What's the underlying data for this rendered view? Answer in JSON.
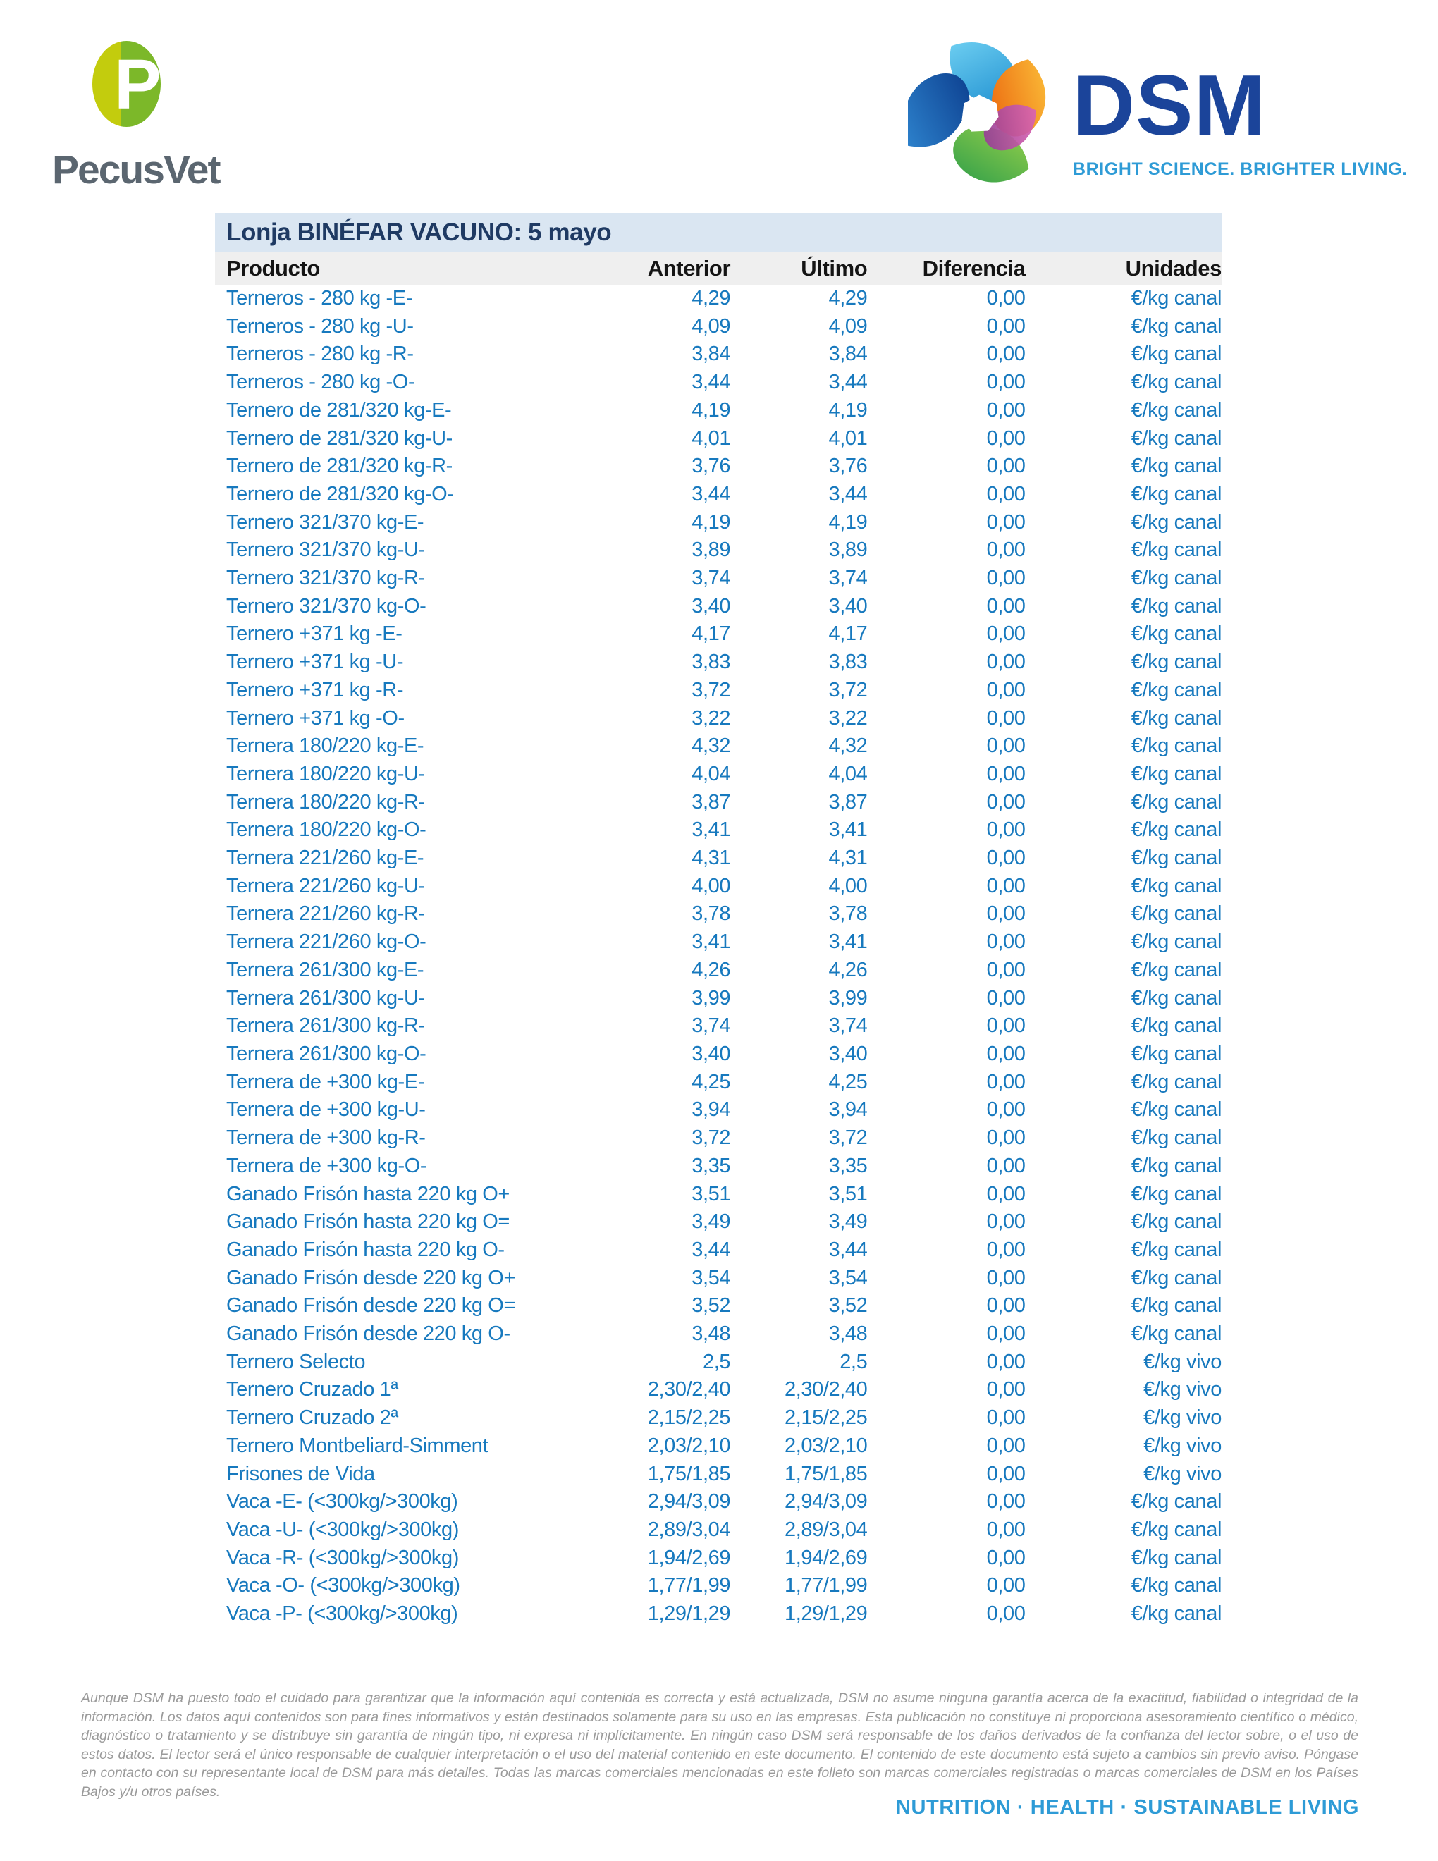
{
  "logos": {
    "pecusvet_text": "PecusVet",
    "dsm_text": "DSM",
    "dsm_tagline": "BRIGHT SCIENCE. BRIGHTER LIVING."
  },
  "icons": {
    "pecusvet_mark": "split-green-ellipse-with-white-P",
    "dsm_mark": "multicolor-swirl-pinwheel"
  },
  "colors": {
    "title_navy": "#1f3a63",
    "title_bar_bg": "#dae6f2",
    "header_row_bg": "#efefef",
    "row_text_blue": "#1779be",
    "dsm_blue": "#1b449a",
    "dsm_light_blue": "#2e9bd6",
    "pecusvet_gray": "#5b6670",
    "pecusvet_yellow_green": "#c3cc0d",
    "pecusvet_green": "#7cb829",
    "disclaimer_gray": "#9a9a9a"
  },
  "table": {
    "title": "Lonja BINÉFAR VACUNO: 5 mayo",
    "columns": [
      "Producto",
      "Anterior",
      "Último",
      "Diferencia",
      "Unidades"
    ],
    "rows": [
      [
        "Terneros - 280 kg -E-",
        "4,29",
        "4,29",
        "0,00",
        "€/kg canal"
      ],
      [
        "Terneros - 280 kg -U-",
        "4,09",
        "4,09",
        "0,00",
        "€/kg canal"
      ],
      [
        "Terneros - 280 kg -R-",
        "3,84",
        "3,84",
        "0,00",
        "€/kg canal"
      ],
      [
        "Terneros - 280 kg -O-",
        "3,44",
        "3,44",
        "0,00",
        "€/kg canal"
      ],
      [
        "Ternero de 281/320 kg-E-",
        "4,19",
        "4,19",
        "0,00",
        "€/kg canal"
      ],
      [
        "Ternero de 281/320 kg-U-",
        "4,01",
        "4,01",
        "0,00",
        "€/kg canal"
      ],
      [
        "Ternero de 281/320 kg-R-",
        "3,76",
        "3,76",
        "0,00",
        "€/kg canal"
      ],
      [
        "Ternero de 281/320 kg-O-",
        "3,44",
        "3,44",
        "0,00",
        "€/kg canal"
      ],
      [
        "Ternero 321/370 kg-E-",
        "4,19",
        "4,19",
        "0,00",
        "€/kg canal"
      ],
      [
        "Ternero 321/370 kg-U-",
        "3,89",
        "3,89",
        "0,00",
        "€/kg canal"
      ],
      [
        "Ternero 321/370 kg-R-",
        "3,74",
        "3,74",
        "0,00",
        "€/kg canal"
      ],
      [
        "Ternero 321/370 kg-O-",
        "3,40",
        "3,40",
        "0,00",
        "€/kg canal"
      ],
      [
        "Ternero +371 kg -E-",
        "4,17",
        "4,17",
        "0,00",
        "€/kg canal"
      ],
      [
        "Ternero +371 kg -U-",
        "3,83",
        "3,83",
        "0,00",
        "€/kg canal"
      ],
      [
        "Ternero +371 kg -R-",
        "3,72",
        "3,72",
        "0,00",
        "€/kg canal"
      ],
      [
        "Ternero +371 kg -O-",
        "3,22",
        "3,22",
        "0,00",
        "€/kg canal"
      ],
      [
        "Ternera 180/220 kg-E-",
        "4,32",
        "4,32",
        "0,00",
        "€/kg canal"
      ],
      [
        "Ternera 180/220 kg-U-",
        "4,04",
        "4,04",
        "0,00",
        "€/kg canal"
      ],
      [
        "Ternera 180/220 kg-R-",
        "3,87",
        "3,87",
        "0,00",
        "€/kg canal"
      ],
      [
        "Ternera 180/220 kg-O-",
        "3,41",
        "3,41",
        "0,00",
        "€/kg canal"
      ],
      [
        "Ternera 221/260 kg-E-",
        "4,31",
        "4,31",
        "0,00",
        "€/kg canal"
      ],
      [
        "Ternera 221/260 kg-U-",
        "4,00",
        "4,00",
        "0,00",
        "€/kg canal"
      ],
      [
        "Ternera 221/260 kg-R-",
        "3,78",
        "3,78",
        "0,00",
        "€/kg canal"
      ],
      [
        "Ternera 221/260 kg-O-",
        "3,41",
        "3,41",
        "0,00",
        "€/kg canal"
      ],
      [
        "Ternera 261/300 kg-E-",
        "4,26",
        "4,26",
        "0,00",
        "€/kg canal"
      ],
      [
        "Ternera 261/300 kg-U-",
        "3,99",
        "3,99",
        "0,00",
        "€/kg canal"
      ],
      [
        "Ternera 261/300 kg-R-",
        "3,74",
        "3,74",
        "0,00",
        "€/kg canal"
      ],
      [
        "Ternera 261/300 kg-O-",
        "3,40",
        "3,40",
        "0,00",
        "€/kg canal"
      ],
      [
        "Ternera de +300 kg-E-",
        "4,25",
        "4,25",
        "0,00",
        "€/kg canal"
      ],
      [
        "Ternera de +300 kg-U-",
        "3,94",
        "3,94",
        "0,00",
        "€/kg canal"
      ],
      [
        "Ternera de +300 kg-R-",
        "3,72",
        "3,72",
        "0,00",
        "€/kg canal"
      ],
      [
        "Ternera de +300 kg-O-",
        "3,35",
        "3,35",
        "0,00",
        "€/kg canal"
      ],
      [
        "Ganado Frisón hasta 220 kg O+",
        "3,51",
        "3,51",
        "0,00",
        "€/kg canal"
      ],
      [
        "Ganado Frisón hasta 220 kg O=",
        "3,49",
        "3,49",
        "0,00",
        "€/kg canal"
      ],
      [
        "Ganado Frisón hasta 220 kg O-",
        "3,44",
        "3,44",
        "0,00",
        "€/kg canal"
      ],
      [
        "Ganado Frisón desde 220 kg O+",
        "3,54",
        "3,54",
        "0,00",
        "€/kg canal"
      ],
      [
        "Ganado Frisón desde 220 kg O=",
        "3,52",
        "3,52",
        "0,00",
        "€/kg canal"
      ],
      [
        "Ganado Frisón desde 220 kg O-",
        "3,48",
        "3,48",
        "0,00",
        "€/kg canal"
      ],
      [
        "Ternero Selecto",
        "2,5",
        "2,5",
        "0,00",
        "€/kg vivo"
      ],
      [
        "Ternero Cruzado 1ª",
        "2,30/2,40",
        "2,30/2,40",
        "0,00",
        "€/kg vivo"
      ],
      [
        "Ternero Cruzado 2ª",
        "2,15/2,25",
        "2,15/2,25",
        "0,00",
        "€/kg vivo"
      ],
      [
        "Ternero Montbeliard-Simment",
        "2,03/2,10",
        "2,03/2,10",
        "0,00",
        "€/kg vivo"
      ],
      [
        "Frisones de Vida",
        "1,75/1,85",
        "1,75/1,85",
        "0,00",
        "€/kg vivo"
      ],
      [
        "Vaca -E- (<300kg/>300kg)",
        "2,94/3,09",
        "2,94/3,09",
        "0,00",
        "€/kg canal"
      ],
      [
        "Vaca -U- (<300kg/>300kg)",
        "2,89/3,04",
        "2,89/3,04",
        "0,00",
        "€/kg canal"
      ],
      [
        "Vaca -R- (<300kg/>300kg)",
        "1,94/2,69",
        "1,94/2,69",
        "0,00",
        "€/kg canal"
      ],
      [
        "Vaca -O- (<300kg/>300kg)",
        "1,77/1,99",
        "1,77/1,99",
        "0,00",
        "€/kg canal"
      ],
      [
        "Vaca -P- (<300kg/>300kg)",
        "1,29/1,29",
        "1,29/1,29",
        "0,00",
        "€/kg canal"
      ]
    ]
  },
  "footer": {
    "disclaimer": "Aunque DSM ha puesto todo el cuidado para garantizar que la información aquí contenida es correcta y está actualizada, DSM no asume ninguna garantía acerca de la exactitud, fiabilidad o integridad de la información. Los datos aquí contenidos son para fines informativos y están destinados solamente para su uso en las empresas. Esta publicación no constituye ni proporciona asesoramiento científico o médico, diagnóstico o tratamiento y se distribuye sin garantía de ningún tipo, ni expresa ni implícitamente. En ningún caso DSM será responsable de los daños derivados de la confianza del lector sobre, o el uso de estos datos. El lector será el único responsable de cualquier interpretación o el uso del material contenido en este documento. El contenido de este documento está sujeto a cambios sin previo aviso. Póngase en contacto con su representante local de DSM para más detalles. Todas las marcas comerciales mencionadas en este folleto son marcas comerciales registradas o marcas comerciales de DSM en los Países Bajos y/u otros países.",
    "tagline": "NUTRITION · HEALTH · SUSTAINABLE LIVING"
  }
}
